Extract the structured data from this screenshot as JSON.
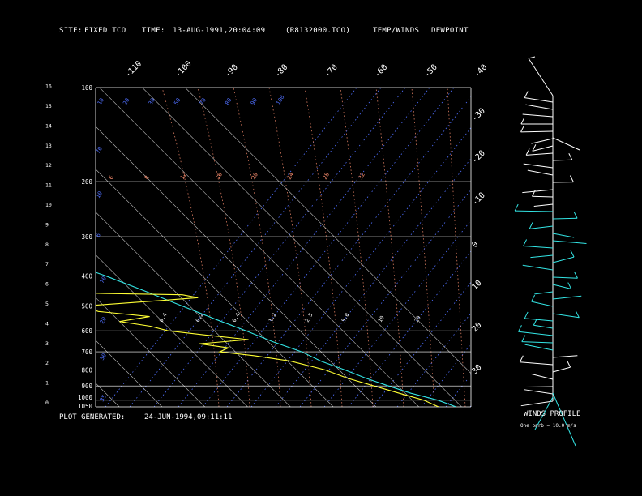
{
  "header": {
    "site_label": "SITE:",
    "site_value": "FIXED TCO",
    "time_label": "TIME:",
    "time_value": "13-AUG-1991,20:04:09",
    "file": "(R8132000.TCO)",
    "legend_temp": "TEMP/WINDS",
    "legend_dew": "DEWPOINT"
  },
  "footer": {
    "generated_label": "PLOT GENERATED:",
    "generated_value": "24-JUN-1994,09:11:11",
    "winds_title": "WINDS PROFILE",
    "barb_scale": "One barb = 10.0 m/s"
  },
  "colors": {
    "background": "#000000",
    "grid": "#ffffff",
    "temp": "#33e5e5",
    "dewpoint": "#ffff33",
    "mixing_ratio": "#4f6fff",
    "dry_adiabat": "#ff9070",
    "moist_adiabat": "#ff9070"
  },
  "chart_data": {
    "type": "line",
    "title": "",
    "pressure_levels_hpa": [
      "100",
      "200",
      "300",
      "400",
      "500",
      "600",
      "700",
      "800",
      "900",
      "1000",
      "1050"
    ],
    "pressure_values": [
      100,
      200,
      300,
      400,
      500,
      600,
      700,
      800,
      900,
      1000,
      1050
    ],
    "altitude_ticks_km": [
      "0",
      "1",
      "2",
      "3",
      "4",
      "5",
      "6",
      "7",
      "8",
      "9",
      "10",
      "11",
      "12",
      "13",
      "14",
      "15",
      "16"
    ],
    "isotherm_labels_top": [
      "-110",
      "-100",
      "-90",
      "-80",
      "-70",
      "-60",
      "-50",
      "-40"
    ],
    "isotherm_labels_right": [
      "-30",
      "-20",
      "-10",
      "0",
      "10",
      "20",
      "30"
    ],
    "mixing_ratio_labels": [
      "10",
      "20",
      "30",
      "50",
      "70",
      "80",
      "90",
      "100"
    ],
    "potential_temp_labels": [
      "6",
      "8",
      "12",
      "16",
      "20",
      "24",
      "28",
      "32"
    ],
    "inner_labels": [
      "0.4",
      "0.2",
      "0.4",
      "1.2",
      "2.5",
      "5.0",
      "10",
      "20"
    ],
    "series": [
      {
        "name": "TEMP/WINDS",
        "color": "#33e5e5",
        "points": [
          [
            1050,
            28.7
          ],
          [
            1000,
            26
          ],
          [
            950,
            21.3
          ],
          [
            900,
            17.8
          ],
          [
            850,
            14.3
          ],
          [
            800,
            11.3
          ],
          [
            750,
            7.8
          ],
          [
            700,
            5.5
          ],
          [
            650,
            1.1
          ],
          [
            600,
            -2.6
          ],
          [
            550,
            -7.1
          ],
          [
            500,
            -11.7
          ],
          [
            450,
            -16.7
          ],
          [
            400,
            -22.6
          ],
          [
            350,
            -30.4
          ],
          [
            300,
            -38.7
          ],
          [
            250,
            -48.7
          ],
          [
            200,
            -60.6
          ],
          [
            180,
            -64.6
          ],
          [
            150,
            -69.4
          ],
          [
            120,
            -71.5
          ],
          [
            100,
            -69.3
          ]
        ]
      },
      {
        "name": "DEWPOINT",
        "color": "#ffff33",
        "points": [
          [
            1050,
            24.6
          ],
          [
            1000,
            22.7
          ],
          [
            950,
            18.6
          ],
          [
            900,
            14.4
          ],
          [
            850,
            10
          ],
          [
            800,
            6.7
          ],
          [
            750,
            0.7
          ],
          [
            720,
            -6.6
          ],
          [
            700,
            -13.7
          ],
          [
            680,
            -10.7
          ],
          [
            660,
            -16.6
          ],
          [
            640,
            -4.1
          ],
          [
            620,
            -12.6
          ],
          [
            600,
            -20.8
          ],
          [
            580,
            -23.9
          ],
          [
            560,
            -30
          ],
          [
            540,
            -21.8
          ],
          [
            520,
            -32.6
          ],
          [
            500,
            -35
          ],
          [
            480,
            -15.4
          ],
          [
            470,
            -6.1
          ],
          [
            460,
            -9.1
          ],
          [
            450,
            -49.5
          ],
          [
            420,
            -44.8
          ],
          [
            400,
            -37.8
          ],
          [
            385,
            -51.1
          ],
          [
            370,
            -43.8
          ],
          [
            350,
            -50
          ],
          [
            330,
            -48.7
          ],
          [
            320,
            -56.4
          ],
          [
            300,
            -47.8
          ],
          [
            280,
            -44.6
          ],
          [
            260,
            -44.8
          ],
          [
            240,
            -51.1
          ],
          [
            220,
            -58.1
          ],
          [
            205,
            -67.2
          ],
          [
            200,
            -69.9
          ]
        ]
      }
    ]
  }
}
